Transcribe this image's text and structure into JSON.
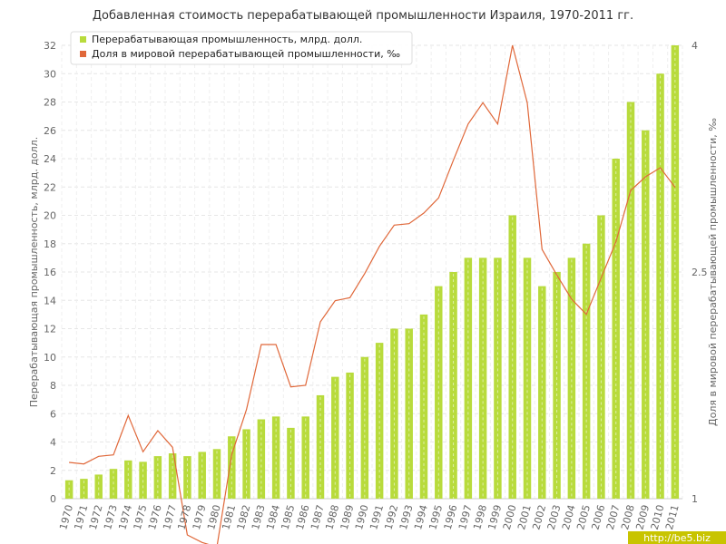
{
  "chart_data": {
    "type": "bar",
    "title": "Добавленная стоимость перерабатывающей промышленности Израиля, 1970-2011 гг.",
    "categories": [
      "1970",
      "1971",
      "1972",
      "1973",
      "1974",
      "1975",
      "1976",
      "1977",
      "1978",
      "1979",
      "1980",
      "1981",
      "1982",
      "1983",
      "1984",
      "1985",
      "1986",
      "1987",
      "1988",
      "1989",
      "1990",
      "1991",
      "1992",
      "1993",
      "1994",
      "1995",
      "1996",
      "1997",
      "1998",
      "1999",
      "2000",
      "2001",
      "2002",
      "2003",
      "2004",
      "2005",
      "2006",
      "2007",
      "2008",
      "2009",
      "2010",
      "2011"
    ],
    "series": [
      {
        "name": "Перерабатывающая промышленность, млрд. долл.",
        "type": "bar",
        "axis": "left",
        "color": "#b8db3c",
        "values": [
          1.3,
          1.4,
          1.7,
          2.1,
          2.7,
          2.6,
          3.0,
          3.2,
          3.0,
          3.3,
          3.5,
          4.4,
          4.9,
          5.6,
          5.8,
          5.0,
          5.8,
          7.3,
          8.6,
          8.9,
          10.0,
          11.0,
          12.0,
          12.0,
          13.0,
          15.0,
          16.0,
          17.0,
          17.0,
          17.0,
          20.0,
          17.0,
          15.0,
          16.0,
          17.0,
          18.0,
          20.0,
          24.0,
          28.0,
          26.0,
          30.0,
          32.0
        ]
      },
      {
        "name": "Доля в мировой перерабатывающей промышленности, ‰",
        "type": "line",
        "axis": "right",
        "color": "#e0683a",
        "values": [
          1.24,
          1.23,
          1.28,
          1.29,
          1.55,
          1.31,
          1.45,
          1.34,
          0.76,
          0.71,
          0.68,
          1.29,
          1.59,
          2.02,
          2.02,
          1.74,
          1.75,
          2.17,
          2.31,
          2.33,
          2.49,
          2.67,
          2.81,
          2.82,
          2.89,
          2.99,
          3.24,
          3.48,
          3.62,
          3.48,
          4.0,
          3.62,
          2.65,
          2.48,
          2.32,
          2.22,
          2.46,
          2.7,
          3.04,
          3.13,
          3.19,
          3.06
        ]
      }
    ],
    "yaxis_left": {
      "label": "Перерабатывающая промышленность, млрд. долл.",
      "range": [
        0,
        32
      ],
      "ticks": [
        "0",
        "2",
        "4",
        "6",
        "8",
        "10",
        "12",
        "14",
        "16",
        "18",
        "20",
        "22",
        "24",
        "26",
        "28",
        "30",
        "32"
      ]
    },
    "yaxis_right": {
      "label": "Доля в мировой перерабатывающей промышленности, ‰",
      "range": [
        1,
        4
      ],
      "ticks": [
        "1",
        "2.5",
        "4"
      ]
    },
    "grid": true,
    "legend_position": "top-left"
  },
  "watermark": {
    "text": "http://be5.biz",
    "background": "#c8c400"
  }
}
